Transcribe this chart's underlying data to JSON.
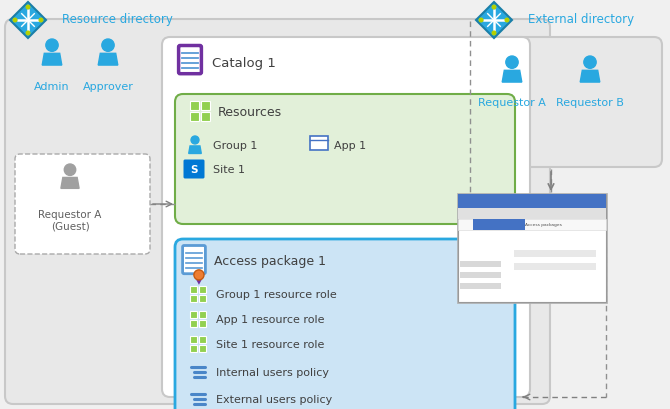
{
  "colors": {
    "blue": "#29a8e0",
    "light_blue_fill": "#cce4f5",
    "blue_border": "#29a8e0",
    "gray_fill": "#e8e8e8",
    "gray_border": "#c8c8c8",
    "green_fill": "#e2f0d9",
    "green_border": "#70ad47",
    "white": "#ffffff",
    "purple": "#7030a0",
    "olive": "#92d050",
    "text_blue": "#29a8e0",
    "text_dark": "#404040",
    "text_gray": "#606060",
    "arrow": "#7f7f7f",
    "sharepoint_blue": "#0078d4",
    "app_blue": "#4472c4",
    "medal_orange": "#ed7d31",
    "ribbon_purple": "#7030a0",
    "browser_blue": "#4472c4",
    "yellow_dot": "#b5d000"
  },
  "resource_dir_label": "Resource directory",
  "external_dir_label": "External directory",
  "catalog_label": "Catalog 1",
  "resources_label": "Resources",
  "access_pkg_label": "Access package 1",
  "items": [
    "Group 1 resource role",
    "App 1 resource role",
    "Site 1 resource role",
    "Internal users policy",
    "External users policy"
  ],
  "left_users": [
    "Admin",
    "Approver"
  ],
  "right_users": [
    "Requestor A",
    "Requestor B"
  ],
  "guest_label": "Requestor A\n(Guest)"
}
